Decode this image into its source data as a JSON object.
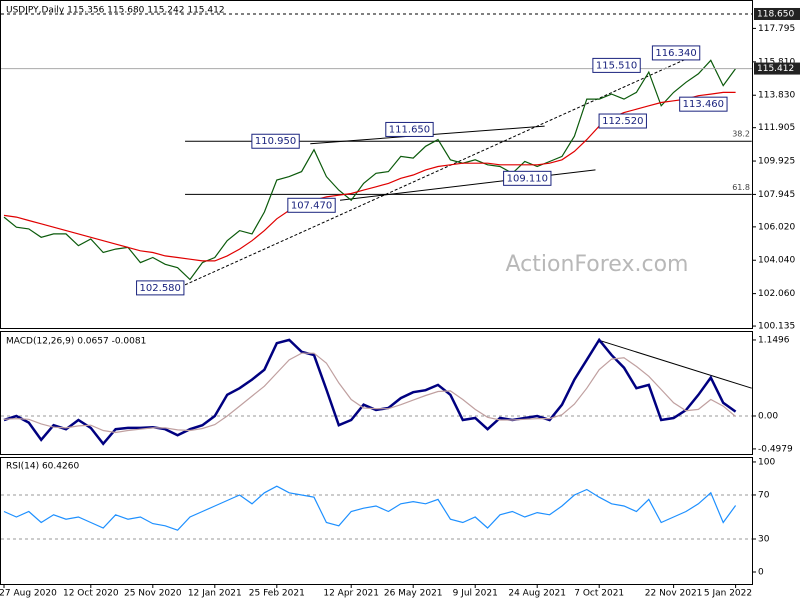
{
  "chart_data": {
    "type": "line",
    "title": "USDJPY,Daily  115.356 115.680 115.242 115.412",
    "watermark": "ActionForex.com",
    "categories": [
      "27 Aug 2020",
      null,
      null,
      null,
      null,
      null,
      null,
      "12 Oct 2020",
      null,
      null,
      null,
      null,
      "25 Nov 2020",
      null,
      null,
      null,
      null,
      "12 Jan 2021",
      null,
      null,
      null,
      null,
      "25 Feb 2021",
      null,
      null,
      null,
      null,
      null,
      "12 Apr 2021",
      null,
      null,
      null,
      null,
      "26 May 2021",
      null,
      null,
      null,
      null,
      "9 Jul 2021",
      null,
      null,
      null,
      null,
      "24 Aug 2021",
      null,
      null,
      null,
      null,
      "7 Oct 2021",
      null,
      null,
      null,
      null,
      null,
      "22 Nov 2021",
      null,
      null,
      null,
      null,
      "5 Jan 2022"
    ],
    "price": {
      "ylim": [
        100.02,
        119.48
      ],
      "yticks": [
        117.795,
        {
          "value": 115.81,
          "label": "115.810"
        },
        {
          "value": 113.83,
          "label": "113.830"
        },
        111.905,
        109.925,
        107.945,
        {
          "value": 106.02,
          "label": "106.020"
        },
        {
          "value": 104.04,
          "label": "104.040"
        },
        {
          "value": 102.06,
          "label": "102.060"
        },
        100.135
      ],
      "level": {
        "value": 118.65,
        "label": "118.650"
      },
      "last": 115.412,
      "series": [
        {
          "color": "#0b5a0b",
          "values": [
            106.6,
            106.0,
            105.9,
            105.4,
            105.6,
            105.6,
            104.9,
            105.3,
            104.5,
            104.7,
            104.8,
            103.9,
            104.2,
            103.8,
            103.6,
            102.9,
            103.9,
            104.2,
            105.2,
            105.8,
            105.6,
            106.9,
            108.8,
            109.0,
            109.3,
            110.6,
            109.0,
            108.2,
            107.6,
            108.6,
            109.2,
            109.3,
            110.2,
            110.1,
            110.8,
            111.2,
            110.0,
            109.8,
            110.0,
            109.7,
            109.6,
            109.2,
            109.9,
            109.6,
            109.9,
            110.2,
            111.4,
            113.6,
            113.6,
            113.9,
            113.6,
            114.0,
            115.2,
            113.2,
            114.0,
            114.6,
            115.1,
            115.9,
            114.4,
            115.412
          ]
        },
        {
          "color": "#e00000",
          "values": [
            106.7,
            106.6,
            106.4,
            106.2,
            106.0,
            105.8,
            105.6,
            105.4,
            105.2,
            105.0,
            104.8,
            104.6,
            104.5,
            104.3,
            104.2,
            104.1,
            104.0,
            104.0,
            104.3,
            104.7,
            105.2,
            105.8,
            106.5,
            107.0,
            107.4,
            107.6,
            107.8,
            107.9,
            108.0,
            108.2,
            108.4,
            108.6,
            108.9,
            109.1,
            109.4,
            109.6,
            109.7,
            109.8,
            109.8,
            109.8,
            109.7,
            109.7,
            109.7,
            109.7,
            109.8,
            110.0,
            110.5,
            111.2,
            112.0,
            112.5,
            112.8,
            113.0,
            113.2,
            113.4,
            113.5,
            113.6,
            113.8,
            113.9,
            114.0,
            114.0
          ]
        }
      ],
      "fib": [
        {
          "label": "38.2",
          "value": 111.1,
          "x": [
            14.6,
            60.3
          ]
        },
        {
          "label": "61.8",
          "value": 107.95,
          "x": [
            14.6,
            60.3
          ]
        }
      ],
      "trendlines": [
        {
          "x": [
            14.6,
            56.1
          ],
          "values": [
            102.58,
            116.34
          ],
          "dashed": true
        },
        {
          "x": [
            24.7,
            43.6
          ],
          "values": [
            110.95,
            112.0
          ],
          "dashed": false
        },
        {
          "x": [
            27.1,
            47.7
          ],
          "values": [
            107.6,
            109.4
          ],
          "dashed": false
        }
      ],
      "annotations": [
        {
          "label": "116.340",
          "value": 116.34,
          "x": 54.2
        },
        {
          "label": "115.510",
          "value": 115.6,
          "x": 49.4
        },
        {
          "label": "112.520",
          "value": 112.3,
          "x": 49.9
        },
        {
          "label": "113.460",
          "value": 113.3,
          "x": 56.4
        },
        {
          "label": "111.650",
          "value": 111.8,
          "x": 32.7
        },
        {
          "label": "110.950",
          "value": 111.1,
          "x": 21.9
        },
        {
          "label": "107.470",
          "value": 107.3,
          "x": 24.8
        },
        {
          "label": "109.110",
          "value": 108.9,
          "x": 42.2
        },
        {
          "label": "102.580",
          "value": 102.4,
          "x": 12.6
        }
      ]
    },
    "macd": {
      "title": "MACD(12,26,9) 0.0657 -0.0081",
      "ylim": [
        -0.59,
        1.27
      ],
      "yticks": [
        1.1496,
        {
          "value": 0,
          "label": "0.00"
        },
        -0.4979
      ],
      "dashed_levels": [
        0
      ],
      "series": [
        {
          "color": "#000080",
          "values": [
            -0.06,
            0.0,
            -0.1,
            -0.36,
            -0.14,
            -0.2,
            -0.06,
            -0.18,
            -0.42,
            -0.2,
            -0.18,
            -0.18,
            -0.17,
            -0.2,
            -0.29,
            -0.2,
            -0.14,
            0.0,
            0.32,
            0.42,
            0.55,
            0.7,
            1.1,
            1.15,
            0.97,
            0.92,
            0.4,
            -0.14,
            -0.06,
            0.17,
            0.09,
            0.12,
            0.27,
            0.36,
            0.39,
            0.47,
            0.32,
            -0.06,
            -0.03,
            -0.2,
            -0.03,
            -0.06,
            -0.03,
            0.0,
            -0.06,
            0.17,
            0.55,
            0.85,
            1.15,
            0.92,
            0.73,
            0.42,
            0.47,
            -0.06,
            -0.03,
            0.09,
            0.32,
            0.58,
            0.2,
            0.0657
          ]
        },
        {
          "color": "#c0a0a0",
          "values": [
            -0.05,
            -0.04,
            -0.05,
            -0.12,
            -0.17,
            -0.18,
            -0.15,
            -0.14,
            -0.22,
            -0.25,
            -0.22,
            -0.2,
            -0.18,
            -0.18,
            -0.21,
            -0.22,
            -0.19,
            -0.13,
            0.0,
            0.15,
            0.3,
            0.45,
            0.65,
            0.85,
            0.95,
            0.95,
            0.8,
            0.5,
            0.25,
            0.12,
            0.11,
            0.11,
            0.17,
            0.24,
            0.31,
            0.37,
            0.38,
            0.25,
            0.1,
            -0.02,
            -0.06,
            -0.06,
            -0.05,
            -0.04,
            -0.04,
            0.02,
            0.18,
            0.42,
            0.7,
            0.86,
            0.88,
            0.75,
            0.6,
            0.4,
            0.2,
            0.08,
            0.1,
            0.25,
            0.15,
            -0.0081
          ]
        }
      ],
      "trendlines": [
        {
          "x": [
            47.9,
            60.3
          ],
          "values": [
            1.15,
            0.42
          ],
          "dashed": false
        }
      ]
    },
    "rsi": {
      "title": "RSI(14) 60.4260",
      "ylim": [
        -11.8,
        104.5
      ],
      "yticks": [
        100,
        70,
        30,
        0
      ],
      "dashed_levels": [
        70,
        30
      ],
      "series": [
        {
          "color": "#1e90ff",
          "values": [
            55,
            50,
            55,
            45,
            52,
            48,
            50,
            45,
            40,
            52,
            48,
            50,
            44,
            42,
            38,
            50,
            55,
            60,
            65,
            70,
            62,
            72,
            78,
            72,
            70,
            68,
            45,
            42,
            55,
            58,
            60,
            55,
            62,
            64,
            62,
            66,
            48,
            45,
            50,
            40,
            52,
            55,
            50,
            54,
            52,
            60,
            70,
            75,
            68,
            62,
            60,
            55,
            66,
            45,
            50,
            55,
            62,
            72,
            45,
            60.426
          ]
        }
      ]
    }
  }
}
